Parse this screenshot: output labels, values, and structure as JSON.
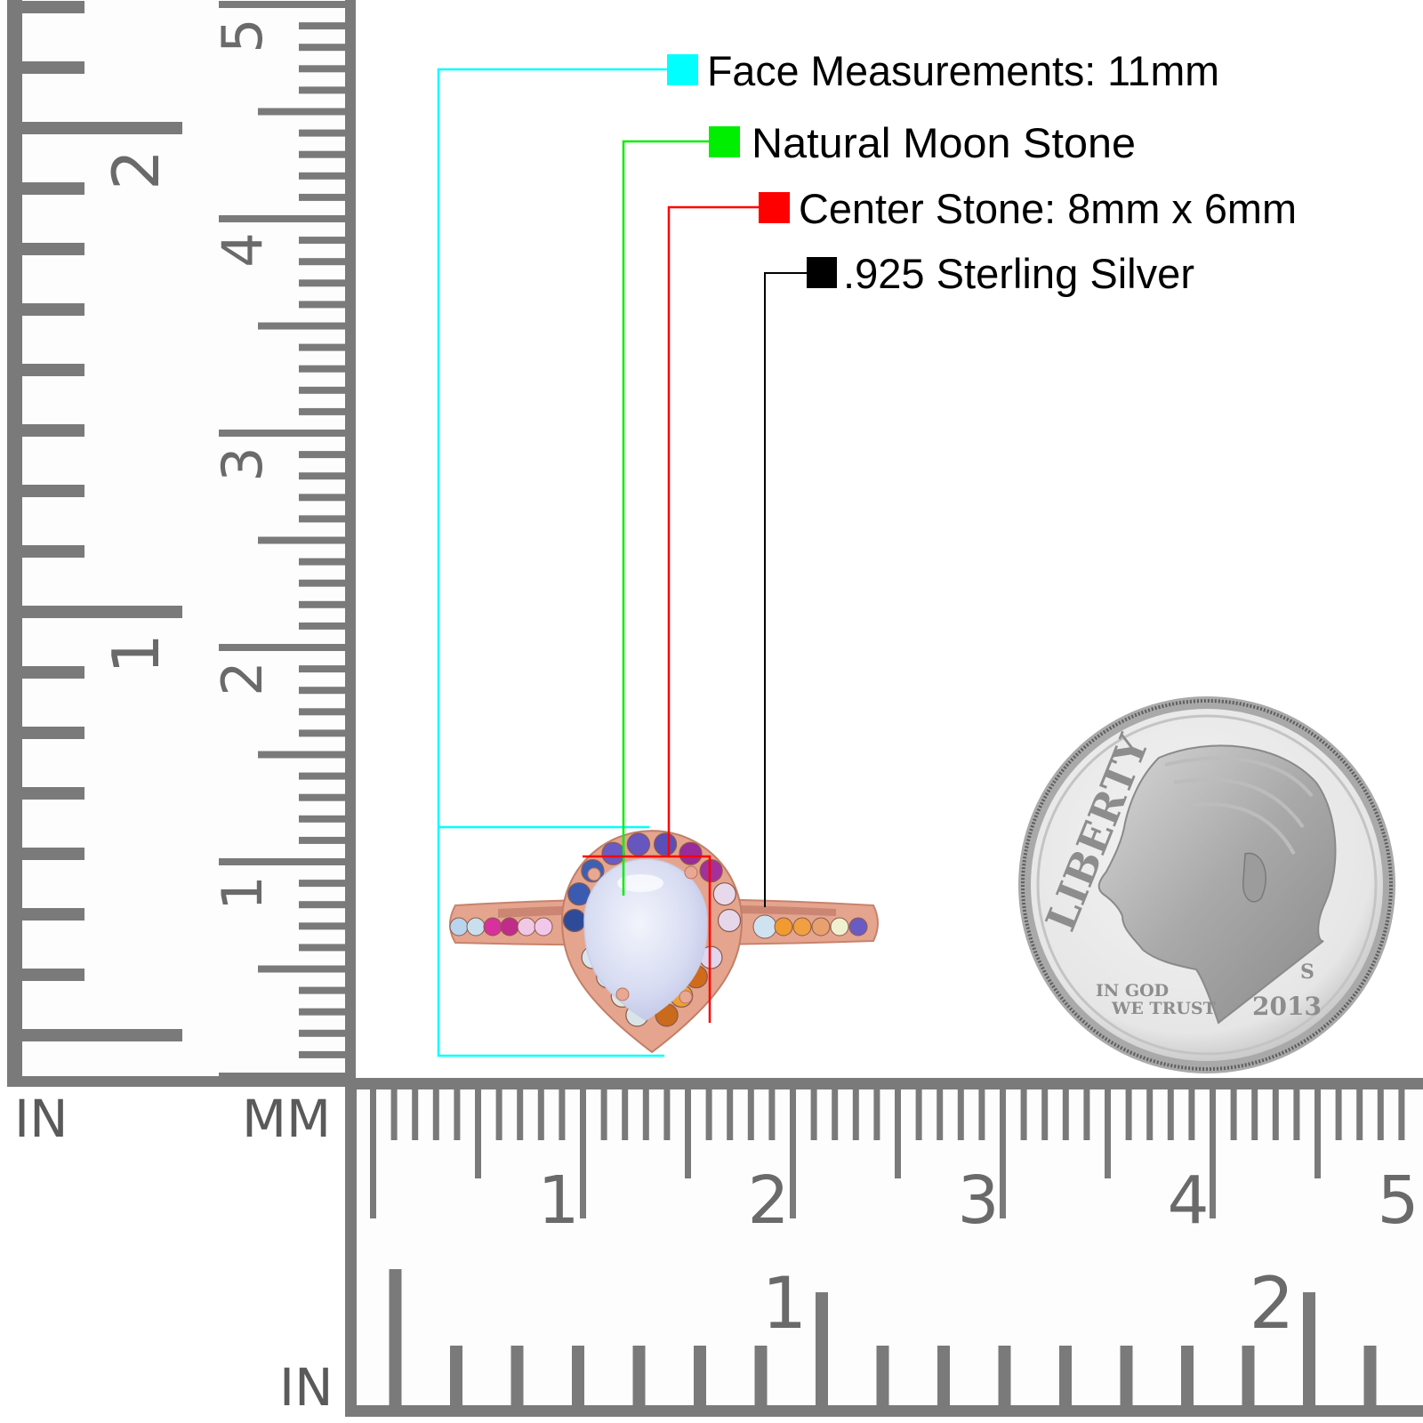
{
  "legend": {
    "items": [
      {
        "label": "Face Measurements: 11mm",
        "color": "#00ffff"
      },
      {
        "label": "Natural Moon Stone",
        "color": "#00ee00"
      },
      {
        "label": "Center Stone: 8mm x 6mm",
        "color": "#ff0000"
      },
      {
        "label": ".925 Sterling Silver",
        "color": "#000000"
      }
    ]
  },
  "rulers": {
    "vertical": {
      "inch_labels": [
        "1",
        "2"
      ],
      "mm_labels": [
        "1",
        "2",
        "3",
        "4",
        "5"
      ],
      "in_unit": "IN",
      "mm_unit": "MM"
    },
    "horizontal": {
      "mm_labels": [
        "1",
        "2",
        "3",
        "4",
        "5"
      ],
      "inch_labels": [
        "1",
        "2"
      ],
      "in_unit": "IN"
    },
    "color": "#7a7a7a"
  },
  "ring": {
    "metal_color": "#e4a48e",
    "center_stone_color": "#dfe2f4",
    "halo_stone_colors": [
      "#f0a030",
      "#c96a1c",
      "#d9e4e8",
      "#e2e8df",
      "#d6e2ea",
      "#d8e4ee",
      "#2e4b9a",
      "#3a5bb0",
      "#3e60b4",
      "#6a5bc4",
      "#6656c0",
      "#5a4fb8",
      "#9a2b9a",
      "#a4309c",
      "#e8d8ec",
      "#e6d6ea",
      "#e2d6ee",
      "#d06a1c"
    ],
    "band_stone_colors_left": [
      "#b9d4ee",
      "#c8e0ee",
      "#d8309c",
      "#c02c8a",
      "#f0c8e6",
      "#f2c8ea"
    ],
    "band_stone_colors_right": [
      "#cfe2f2",
      "#f09a30",
      "#f0a040",
      "#e8a070",
      "#f0f0d0",
      "#6a5bc4"
    ]
  },
  "coin": {
    "legend": "LIBERTY",
    "motto_line1": "IN GOD",
    "motto_line2": "WE TRUST",
    "year": "2013",
    "mint_mark": "S"
  }
}
